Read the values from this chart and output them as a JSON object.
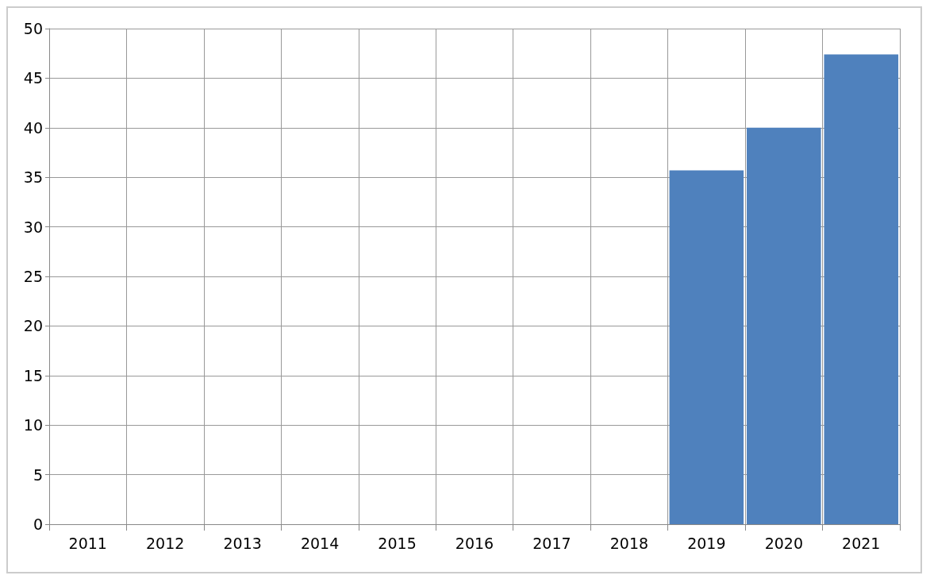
{
  "chart_data": {
    "type": "bar",
    "categories": [
      "2011",
      "2012",
      "2013",
      "2014",
      "2015",
      "2016",
      "2017",
      "2018",
      "2019",
      "2020",
      "2021"
    ],
    "values": [
      null,
      null,
      null,
      null,
      null,
      null,
      null,
      null,
      35.7,
      40.0,
      47.4
    ],
    "color": "#4f81bd",
    "ylim": [
      0,
      50
    ],
    "yticks": [
      0,
      5,
      10,
      15,
      20,
      25,
      30,
      35,
      40,
      45,
      50
    ],
    "grid": true
  }
}
